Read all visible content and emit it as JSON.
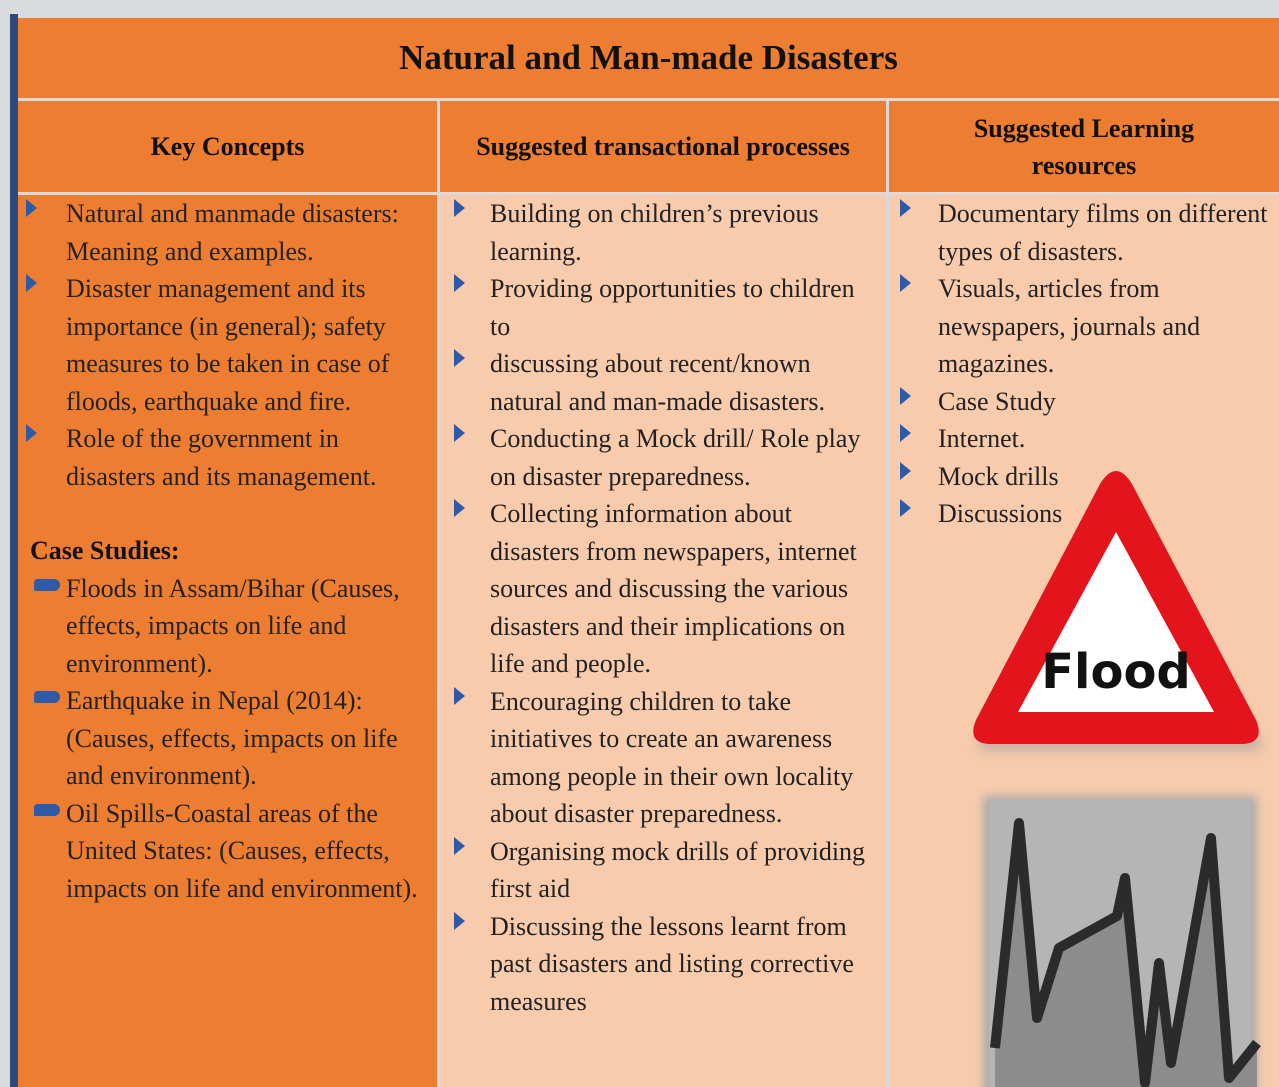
{
  "title": "Natural and Man-made Disasters",
  "headers": [
    "Key Concepts",
    "Suggested transactional processes",
    "Suggested Learning resources"
  ],
  "key_concepts": {
    "items": [
      "Natural and manmade disasters: Meaning and examples.",
      "Disaster management and its importance (in general); safety measures to be taken in case of floods, earthquake and fire.",
      "Role of the government in disasters and its management."
    ],
    "case_studies_heading": "Case Studies:",
    "case_studies": [
      "Floods in Assam/Bihar (Causes, effects, impacts on life and environment).",
      "Earthquake in Nepal (2014): (Causes, effects, impacts on life and environment).",
      "Oil Spills-Coastal areas of the United States: (Causes, effects, impacts on life and environment)."
    ]
  },
  "processes": [
    "Building on children’s previous learning.",
    "Providing opportunities to children to",
    "discussing about recent/known natural and man-made disasters.",
    "Conducting a Mock drill/ Role play on disaster preparedness.",
    "Collecting information about disasters from newspapers, internet sources and discussing the various disasters and their implications on life and people.",
    "Encouraging children to take initiatives to create an awareness among people in their own locality about disaster preparedness.",
    "Organising mock drills of providing first aid",
    "Discussing the lessons learnt from past disasters and listing corrective measures"
  ],
  "resources": [
    "Documentary films on different types of disasters.",
    "Visuals, articles from newspapers, journals and magazines.",
    "Case Study",
    "Internet.",
    "Mock drills",
    "Discussions"
  ],
  "flood_sign": {
    "label": "Flood"
  }
}
